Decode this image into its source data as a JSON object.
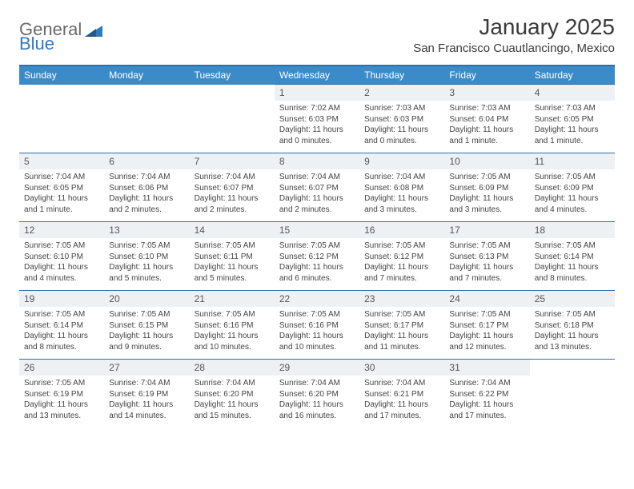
{
  "logo": {
    "general": "General",
    "blue": "Blue"
  },
  "title": "January 2025",
  "location": "San Francisco Cuautlancingo, Mexico",
  "colors": {
    "header_bg": "#3b8bc9",
    "header_border": "#2f6fa4",
    "daynum_bg": "#eef1f3",
    "text": "#333333",
    "logo_gray": "#6a6a6a",
    "logo_blue": "#2f7bbf"
  },
  "day_headers": [
    "Sunday",
    "Monday",
    "Tuesday",
    "Wednesday",
    "Thursday",
    "Friday",
    "Saturday"
  ],
  "weeks": [
    [
      {
        "n": "",
        "lines": []
      },
      {
        "n": "",
        "lines": []
      },
      {
        "n": "",
        "lines": []
      },
      {
        "n": "1",
        "lines": [
          "Sunrise: 7:02 AM",
          "Sunset: 6:03 PM",
          "Daylight: 11 hours and 0 minutes."
        ]
      },
      {
        "n": "2",
        "lines": [
          "Sunrise: 7:03 AM",
          "Sunset: 6:03 PM",
          "Daylight: 11 hours and 0 minutes."
        ]
      },
      {
        "n": "3",
        "lines": [
          "Sunrise: 7:03 AM",
          "Sunset: 6:04 PM",
          "Daylight: 11 hours and 1 minute."
        ]
      },
      {
        "n": "4",
        "lines": [
          "Sunrise: 7:03 AM",
          "Sunset: 6:05 PM",
          "Daylight: 11 hours and 1 minute."
        ]
      }
    ],
    [
      {
        "n": "5",
        "lines": [
          "Sunrise: 7:04 AM",
          "Sunset: 6:05 PM",
          "Daylight: 11 hours and 1 minute."
        ]
      },
      {
        "n": "6",
        "lines": [
          "Sunrise: 7:04 AM",
          "Sunset: 6:06 PM",
          "Daylight: 11 hours and 2 minutes."
        ]
      },
      {
        "n": "7",
        "lines": [
          "Sunrise: 7:04 AM",
          "Sunset: 6:07 PM",
          "Daylight: 11 hours and 2 minutes."
        ]
      },
      {
        "n": "8",
        "lines": [
          "Sunrise: 7:04 AM",
          "Sunset: 6:07 PM",
          "Daylight: 11 hours and 2 minutes."
        ]
      },
      {
        "n": "9",
        "lines": [
          "Sunrise: 7:04 AM",
          "Sunset: 6:08 PM",
          "Daylight: 11 hours and 3 minutes."
        ]
      },
      {
        "n": "10",
        "lines": [
          "Sunrise: 7:05 AM",
          "Sunset: 6:09 PM",
          "Daylight: 11 hours and 3 minutes."
        ]
      },
      {
        "n": "11",
        "lines": [
          "Sunrise: 7:05 AM",
          "Sunset: 6:09 PM",
          "Daylight: 11 hours and 4 minutes."
        ]
      }
    ],
    [
      {
        "n": "12",
        "lines": [
          "Sunrise: 7:05 AM",
          "Sunset: 6:10 PM",
          "Daylight: 11 hours and 4 minutes."
        ]
      },
      {
        "n": "13",
        "lines": [
          "Sunrise: 7:05 AM",
          "Sunset: 6:10 PM",
          "Daylight: 11 hours and 5 minutes."
        ]
      },
      {
        "n": "14",
        "lines": [
          "Sunrise: 7:05 AM",
          "Sunset: 6:11 PM",
          "Daylight: 11 hours and 5 minutes."
        ]
      },
      {
        "n": "15",
        "lines": [
          "Sunrise: 7:05 AM",
          "Sunset: 6:12 PM",
          "Daylight: 11 hours and 6 minutes."
        ]
      },
      {
        "n": "16",
        "lines": [
          "Sunrise: 7:05 AM",
          "Sunset: 6:12 PM",
          "Daylight: 11 hours and 7 minutes."
        ]
      },
      {
        "n": "17",
        "lines": [
          "Sunrise: 7:05 AM",
          "Sunset: 6:13 PM",
          "Daylight: 11 hours and 7 minutes."
        ]
      },
      {
        "n": "18",
        "lines": [
          "Sunrise: 7:05 AM",
          "Sunset: 6:14 PM",
          "Daylight: 11 hours and 8 minutes."
        ]
      }
    ],
    [
      {
        "n": "19",
        "lines": [
          "Sunrise: 7:05 AM",
          "Sunset: 6:14 PM",
          "Daylight: 11 hours and 8 minutes."
        ]
      },
      {
        "n": "20",
        "lines": [
          "Sunrise: 7:05 AM",
          "Sunset: 6:15 PM",
          "Daylight: 11 hours and 9 minutes."
        ]
      },
      {
        "n": "21",
        "lines": [
          "Sunrise: 7:05 AM",
          "Sunset: 6:16 PM",
          "Daylight: 11 hours and 10 minutes."
        ]
      },
      {
        "n": "22",
        "lines": [
          "Sunrise: 7:05 AM",
          "Sunset: 6:16 PM",
          "Daylight: 11 hours and 10 minutes."
        ]
      },
      {
        "n": "23",
        "lines": [
          "Sunrise: 7:05 AM",
          "Sunset: 6:17 PM",
          "Daylight: 11 hours and 11 minutes."
        ]
      },
      {
        "n": "24",
        "lines": [
          "Sunrise: 7:05 AM",
          "Sunset: 6:17 PM",
          "Daylight: 11 hours and 12 minutes."
        ]
      },
      {
        "n": "25",
        "lines": [
          "Sunrise: 7:05 AM",
          "Sunset: 6:18 PM",
          "Daylight: 11 hours and 13 minutes."
        ]
      }
    ],
    [
      {
        "n": "26",
        "lines": [
          "Sunrise: 7:05 AM",
          "Sunset: 6:19 PM",
          "Daylight: 11 hours and 13 minutes."
        ]
      },
      {
        "n": "27",
        "lines": [
          "Sunrise: 7:04 AM",
          "Sunset: 6:19 PM",
          "Daylight: 11 hours and 14 minutes."
        ]
      },
      {
        "n": "28",
        "lines": [
          "Sunrise: 7:04 AM",
          "Sunset: 6:20 PM",
          "Daylight: 11 hours and 15 minutes."
        ]
      },
      {
        "n": "29",
        "lines": [
          "Sunrise: 7:04 AM",
          "Sunset: 6:20 PM",
          "Daylight: 11 hours and 16 minutes."
        ]
      },
      {
        "n": "30",
        "lines": [
          "Sunrise: 7:04 AM",
          "Sunset: 6:21 PM",
          "Daylight: 11 hours and 17 minutes."
        ]
      },
      {
        "n": "31",
        "lines": [
          "Sunrise: 7:04 AM",
          "Sunset: 6:22 PM",
          "Daylight: 11 hours and 17 minutes."
        ]
      },
      {
        "n": "",
        "lines": []
      }
    ]
  ]
}
